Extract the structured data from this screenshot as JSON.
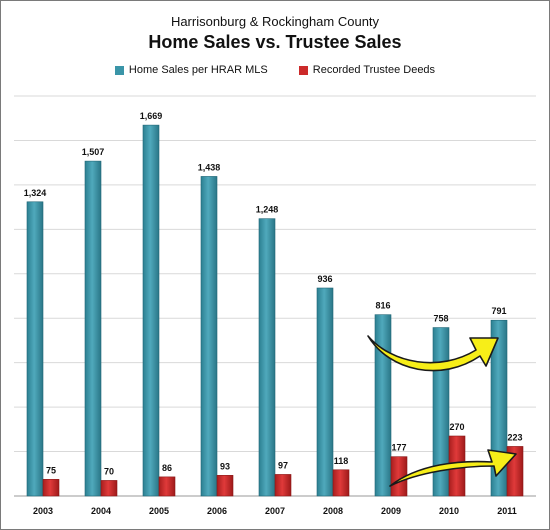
{
  "chart_data": {
    "type": "bar",
    "subtitle": "Harrisonburg & Rockingham County",
    "title": "Home Sales vs. Trustee Sales",
    "categories": [
      "2003",
      "2004",
      "2005",
      "2006",
      "2007",
      "2008",
      "2009",
      "2010",
      "2011"
    ],
    "series": [
      {
        "name": "Home Sales per HRAR MLS",
        "values": [
          1324,
          1507,
          1669,
          1438,
          1248,
          936,
          816,
          758,
          791
        ],
        "labels": [
          "1,324",
          "1,507",
          "1,669",
          "1,438",
          "1,248",
          "936",
          "816",
          "758",
          "791"
        ],
        "color": "#3a95a8"
      },
      {
        "name": "Recorded Trustee Deeds",
        "values": [
          75,
          70,
          86,
          93,
          97,
          118,
          177,
          270,
          223
        ],
        "labels": [
          "75",
          "70",
          "86",
          "93",
          "97",
          "118",
          "177",
          "270",
          "223"
        ],
        "color": "#cc2a2a"
      }
    ],
    "ylim": [
      0,
      1800
    ],
    "grid": true,
    "legend": "top-center",
    "annotations": [
      "yellow-arrow-home-sales-2009-2011",
      "yellow-arrow-trustee-2009-2011"
    ]
  }
}
